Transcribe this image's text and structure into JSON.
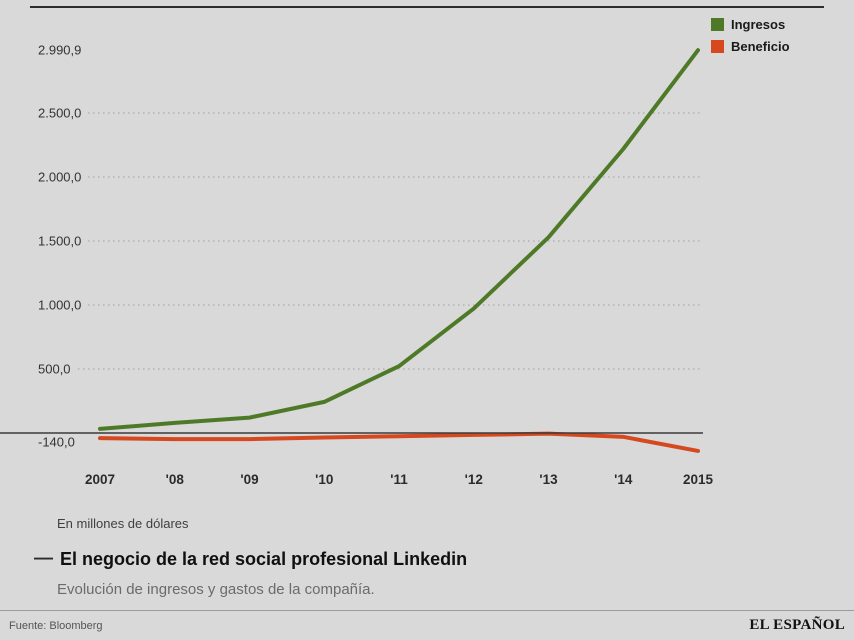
{
  "page": {
    "background": "#d9d9d9"
  },
  "legend": {
    "items": [
      {
        "label": "Ingresos",
        "color": "#4e7a28"
      },
      {
        "label": "Beneficio",
        "color": "#d6491f"
      }
    ]
  },
  "chart_data": {
    "type": "line",
    "title": "El negocio de la red social profesional Linkedin",
    "title_dash": "—",
    "subtitle": "Evolución de ingresos y gastos de la compañía.",
    "units_note": "En millones de dólares",
    "x_labels": [
      "2007",
      "'08",
      "'09",
      "'10",
      "'11",
      "'12",
      "'13",
      "'14",
      "2015"
    ],
    "x_values": [
      2007,
      2008,
      2009,
      2010,
      2011,
      2012,
      2013,
      2014,
      2015
    ],
    "series": [
      {
        "name": "Ingresos",
        "color": "#4e7a28",
        "values": [
          32.5,
          78.8,
          120.1,
          243.1,
          522.2,
          972.3,
          1528.5,
          2218.8,
          2990.9
        ]
      },
      {
        "name": "Beneficio",
        "color": "#d6491f",
        "values": [
          -40,
          -48,
          -48,
          -35,
          -25,
          -15,
          -5,
          -30,
          -140
        ]
      }
    ],
    "y_axis": {
      "max_label": {
        "text": "2.990,9",
        "value": 2990.9
      },
      "gridlines": [
        {
          "text": "2.500,0",
          "value": 2500
        },
        {
          "text": "2.000,0",
          "value": 2000
        },
        {
          "text": "1.500,0",
          "value": 1500
        },
        {
          "text": "1.000,0",
          "value": 1000
        },
        {
          "text": "500,0",
          "value": 500
        }
      ],
      "min_label": {
        "text": "-140,0",
        "value": -140
      },
      "zero_value": 0,
      "range": [
        -140,
        2990.9
      ],
      "grid": "dotted",
      "legend_position": "top-right"
    }
  },
  "footer": {
    "source": "Fuente: Bloomberg",
    "brand": "EL ESPAÑOL"
  }
}
